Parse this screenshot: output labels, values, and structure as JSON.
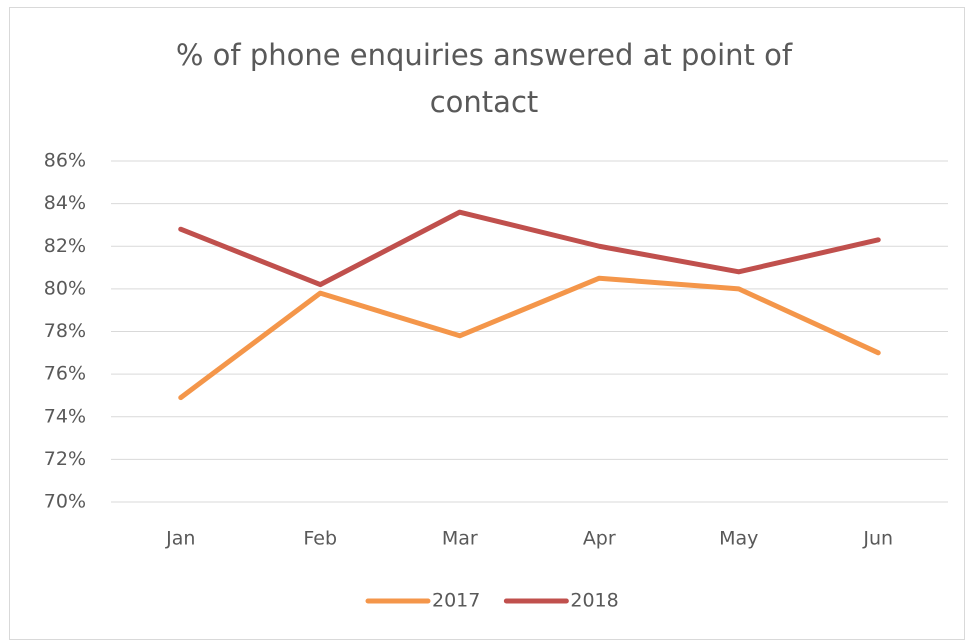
{
  "chart_data": {
    "type": "line",
    "title": "% of phone enquiries answered at point of contact",
    "categories": [
      "Jan",
      "Feb",
      "Mar",
      "Apr",
      "May",
      "Jun"
    ],
    "series": [
      {
        "name": "2017",
        "color": "#f4964a",
        "values": [
          74.9,
          79.8,
          77.8,
          80.5,
          80.0,
          77.0
        ]
      },
      {
        "name": "2018",
        "color": "#c0504d",
        "values": [
          82.8,
          80.2,
          83.6,
          82.0,
          80.8,
          82.3
        ]
      }
    ],
    "ylim": [
      70,
      86
    ],
    "yticks": [
      {
        "value": 70,
        "label": "70%"
      },
      {
        "value": 72,
        "label": "72%"
      },
      {
        "value": 74,
        "label": "74%"
      },
      {
        "value": 76,
        "label": "76%"
      },
      {
        "value": 78,
        "label": "78%"
      },
      {
        "value": 80,
        "label": "80%"
      },
      {
        "value": 82,
        "label": "82%"
      },
      {
        "value": 84,
        "label": "84%"
      },
      {
        "value": 86,
        "label": "86%"
      }
    ],
    "grid": true,
    "legend": "bottom"
  }
}
